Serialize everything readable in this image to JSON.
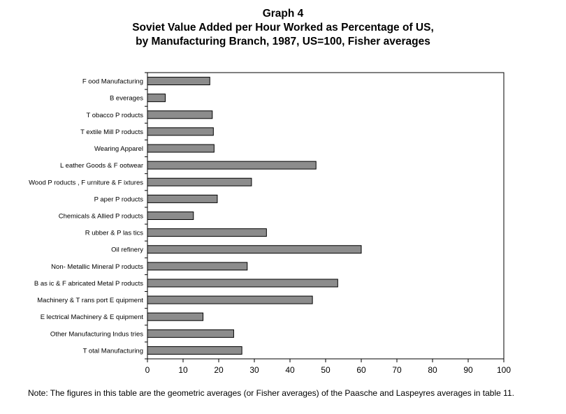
{
  "title_lines": [
    "Graph 4",
    "Soviet Value Added per Hour Worked as Percentage of US,",
    "by Manufacturing Branch, 1987, US=100, Fisher averages"
  ],
  "note": "Note: The figures in this table are the geometric averages (or Fisher averages) of the Paasche and Laspeyres averages in table 11.",
  "colors": {
    "bar_fill": "#8c8c8c",
    "bar_stroke": "#000000",
    "axis": "#000000"
  },
  "chart_data": {
    "type": "bar",
    "orientation": "horizontal",
    "title": "Graph 4 Soviet Value Added per Hour Worked as Percentage of US, by Manufacturing Branch, 1987, US=100, Fisher averages",
    "categories": [
      "F ood Manufacturing",
      "B everages",
      "T obacco P roducts",
      "T extile Mill P roducts",
      "Wearing Apparel",
      "L eather Goods & F ootwear",
      "Wood P roducts , F urniture & F ixtures",
      "P aper P roducts",
      "Chemicals & Allied P roducts",
      "R ubber & P las tics",
      "Oil refinery",
      "Non- Metallic Mineral P roducts",
      "B as ic & F abricated Metal P roducts",
      "Machinery & T rans port E quipment",
      "E lectrical Machinery & E quipment",
      "Other Manufacturing Indus tries",
      "T otal Manufacturing"
    ],
    "values": [
      17.5,
      5,
      18.2,
      18.5,
      18.7,
      47.3,
      29.2,
      19.6,
      12.9,
      33.4,
      60.0,
      28.0,
      53.4,
      46.3,
      15.6,
      24.2,
      26.5
    ],
    "xlabel": "",
    "ylabel": "",
    "xlim": [
      0,
      100
    ],
    "xticks": [
      "0",
      "10",
      "20",
      "30",
      "40",
      "50",
      "60",
      "70",
      "80",
      "90",
      "100"
    ],
    "grid": false,
    "legend": "none"
  }
}
